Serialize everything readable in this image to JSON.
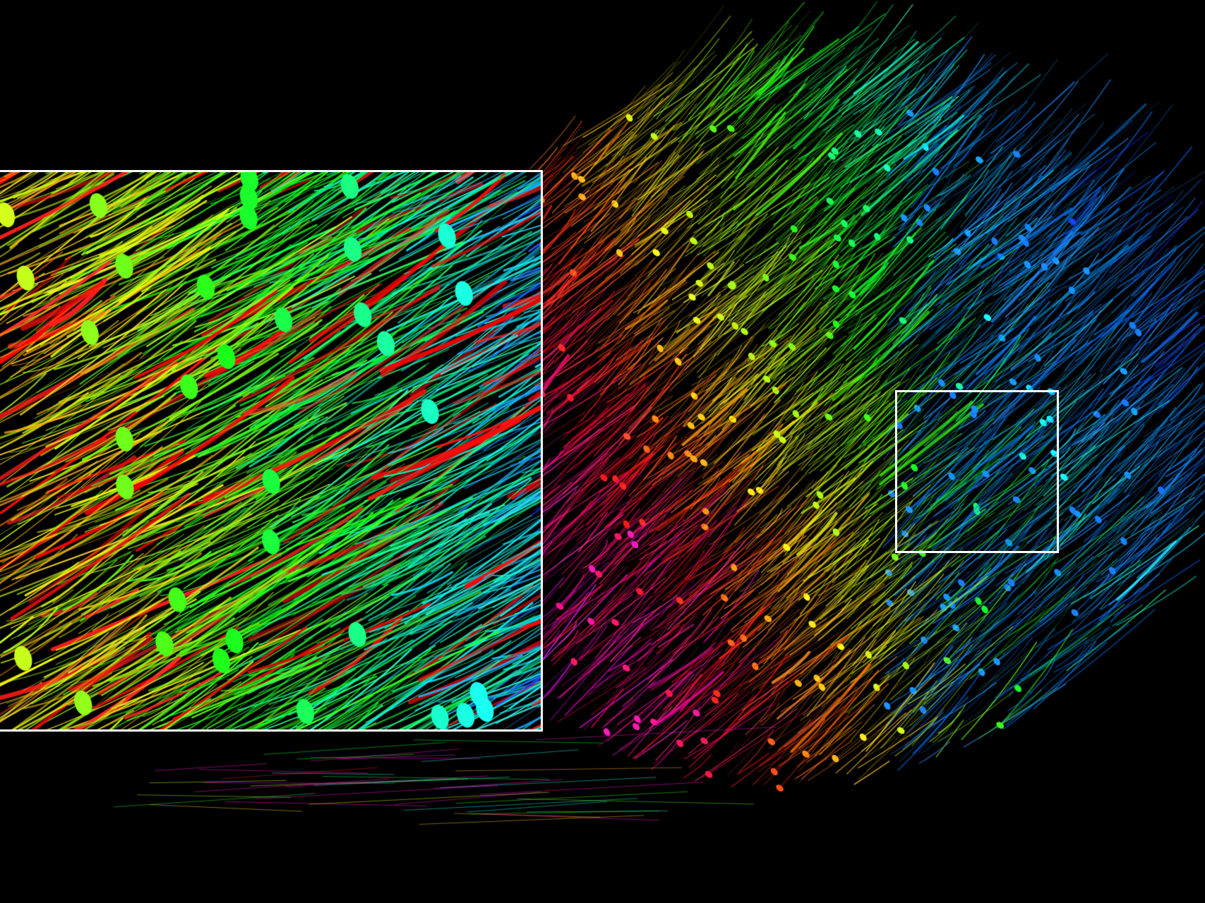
{
  "image": {
    "subject": "neuron-reconstruction",
    "background_color": "#000000",
    "frame_color": "#ffffff",
    "palette": [
      "#ff00c0",
      "#ff0000",
      "#ff8000",
      "#ffff00",
      "#80ff00",
      "#00ffd0",
      "#20a0ff",
      "#2070d0"
    ]
  }
}
